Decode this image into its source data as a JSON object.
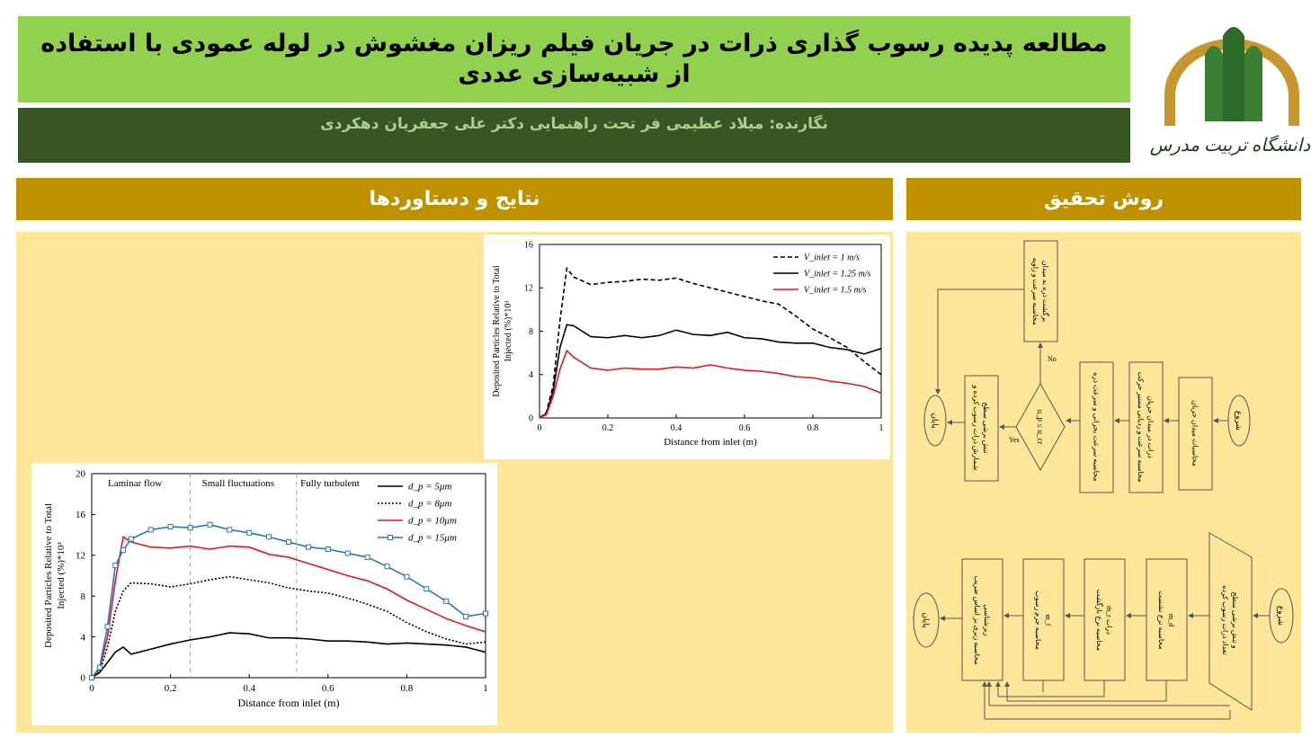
{
  "header": {
    "title": "مطالعه پدیده رسوب گذاری ذرات در جریان فیلم ریزان مغشوش در لوله عمودی با استفاده از شبیه‌سازی عددی",
    "authors": "نگارنده: میلاد عظیمی فر تحت راهنمایی دکتر علی جعفریان دهکردی",
    "logo_text": "دانشگاه تربیت مدرس"
  },
  "sections": {
    "results": "نتایج و دستاوردها",
    "method": "روش تحقیق"
  },
  "flowcharts": [
    {
      "nodes": [
        {
          "lines": [
            "شروع"
          ]
        },
        {
          "lines": [
            "محاسبات میدان جریان"
          ]
        },
        {
          "lines": [
            "محاسبه سرعت و ردیابی مسیر حرکت",
            "ذرات در میدان جریان"
          ]
        },
        {
          "lines": [
            "محاسبه سرعت بحرانی و سرعت ذره"
          ]
        },
        {
          "lines": [
            "u_p ≤ u_cr"
          ]
        },
        {
          "lines": [
            "محاسبه سرعت و زاویه",
            "برگشت ذره به میدان"
          ]
        },
        {
          "lines": [
            "شمارش ذرات رسوب کرده و",
            "تنش برشی سطح"
          ]
        },
        {
          "lines": [
            "پایان"
          ]
        }
      ],
      "yes": "Yes",
      "no": "No"
    },
    {
      "nodes": [
        {
          "lines": [
            "شروع"
          ]
        },
        {
          "lines": [
            "تعداد ذرات رسوب کرده",
            "و تنش برشی سطح"
          ]
        },
        {
          "lines": [
            "محاسبه نرخ نشست",
            "ṁ_d"
          ]
        },
        {
          "lines": [
            "محاسبه نرخ بازگشت",
            "ذرات ṁ_r"
          ]
        },
        {
          "lines": [
            "محاسبه جرم رسوب",
            "m_f"
          ]
        },
        {
          "lines": [
            "محاسبه زبری بر اساس ضریب",
            "زبرشناسی"
          ]
        },
        {
          "lines": [
            "پایان"
          ]
        }
      ]
    }
  ],
  "chart_data": [
    {
      "type": "line",
      "xlabel": "Distance from inlet (m)",
      "ylabel": [
        "Deposited Particles Relative to Total",
        "Injected (%)*10³"
      ],
      "x": [
        0,
        0.02,
        0.04,
        0.06,
        0.08,
        0.1,
        0.15,
        0.2,
        0.25,
        0.3,
        0.35,
        0.4,
        0.45,
        0.5,
        0.55,
        0.6,
        0.65,
        0.7,
        0.75,
        0.8,
        0.85,
        0.9,
        0.95,
        1.0
      ],
      "xlim": [
        0,
        1
      ],
      "xticks": [
        0,
        0.2,
        0.4,
        0.6,
        0.8,
        1
      ],
      "ylim": [
        0,
        16
      ],
      "yticks": [
        0,
        4,
        8,
        12,
        16
      ],
      "legend": "upper right",
      "series": [
        {
          "name": "V_inlet = 1 m/s",
          "color": "#000000",
          "line_style": "dashed",
          "values": [
            0,
            0.5,
            3,
            9,
            13.8,
            13,
            12.3,
            12.5,
            12.6,
            12.8,
            12.7,
            12.9,
            12.4,
            12,
            11.6,
            11.2,
            10.8,
            10.5,
            9.4,
            8.2,
            7.4,
            6.5,
            5.2,
            4
          ]
        },
        {
          "name": "V_inlet = 1.25 m/s",
          "color": "#000000",
          "line_style": "solid",
          "values": [
            0,
            0.4,
            2.5,
            6.5,
            8.6,
            8.5,
            7.5,
            7.4,
            7.6,
            7.4,
            7.6,
            8.1,
            7.7,
            7.6,
            7.9,
            7.4,
            7.3,
            7,
            6.9,
            6.9,
            6.5,
            6.3,
            5.9,
            6.4
          ]
        },
        {
          "name": "V_inlet = 1.5 m/s",
          "color": "#e41a1c",
          "line_style": "solid",
          "values": [
            0,
            0.3,
            2,
            4.5,
            6.2,
            5.6,
            4.6,
            4.4,
            4.6,
            4.5,
            4.5,
            4.7,
            4.6,
            4.9,
            4.6,
            4.4,
            4.3,
            4.1,
            3.8,
            3.7,
            3.4,
            3.2,
            2.9,
            2.3
          ]
        }
      ]
    },
    {
      "type": "line",
      "xlabel": "Distance from inlet (m)",
      "ylabel": [
        "Deposited Particles Relative to Total",
        "Injected (%)*10³"
      ],
      "annotations": [
        "Laminar flow",
        "Small fluctuations",
        "Fully turbulent"
      ],
      "vlines": [
        0.25,
        0.52
      ],
      "x": [
        0,
        0.02,
        0.04,
        0.06,
        0.08,
        0.1,
        0.15,
        0.2,
        0.25,
        0.3,
        0.35,
        0.4,
        0.45,
        0.5,
        0.55,
        0.6,
        0.65,
        0.7,
        0.75,
        0.8,
        0.85,
        0.9,
        0.95,
        1.0
      ],
      "xlim": [
        0,
        1
      ],
      "xticks": [
        0,
        0.2,
        0.4,
        0.6,
        0.8,
        1
      ],
      "ylim": [
        0,
        20
      ],
      "yticks": [
        0,
        4,
        8,
        12,
        16,
        20
      ],
      "legend": "upper right",
      "series": [
        {
          "name": "d_p = 5μm",
          "color": "#000000",
          "line_style": "solid",
          "values": [
            0,
            0.5,
            1.5,
            2.5,
            3,
            2.3,
            2.8,
            3.3,
            3.7,
            4,
            4.4,
            4.3,
            3.9,
            3.9,
            3.8,
            3.6,
            3.6,
            3.5,
            3.3,
            3.4,
            3.3,
            3.2,
            3,
            2.5
          ]
        },
        {
          "name": "d_p = 8μm",
          "color": "#000000",
          "line_style": "dotted",
          "values": [
            0,
            0.5,
            3,
            6.5,
            8.5,
            9.3,
            9.2,
            8.9,
            9.2,
            9.6,
            9.9,
            9.6,
            9.3,
            8.8,
            8.5,
            8.3,
            7.8,
            7.2,
            6.5,
            5.4,
            4.5,
            3.8,
            3.3,
            3.5
          ]
        },
        {
          "name": "d_p = 10μm",
          "color": "#e41a1c",
          "line_style": "solid",
          "values": [
            0,
            0.8,
            4,
            9.5,
            13.8,
            13.3,
            12.8,
            12.7,
            12.9,
            12.6,
            12.9,
            12.8,
            12.1,
            11.8,
            11.2,
            10.6,
            10,
            9.5,
            8.7,
            7.6,
            6.7,
            5.8,
            5.1,
            4.5
          ]
        },
        {
          "name": "d_p = 15μm",
          "color": "#2e75b6",
          "line_style": "solid",
          "marker": "square",
          "values": [
            0,
            1,
            5,
            11,
            12.5,
            13.6,
            14.5,
            14.8,
            14.7,
            15,
            14.5,
            14.2,
            13.8,
            13.3,
            12.8,
            12.6,
            12.2,
            11.8,
            10.9,
            9.9,
            8.7,
            7.5,
            6,
            6.3
          ]
        }
      ]
    }
  ]
}
